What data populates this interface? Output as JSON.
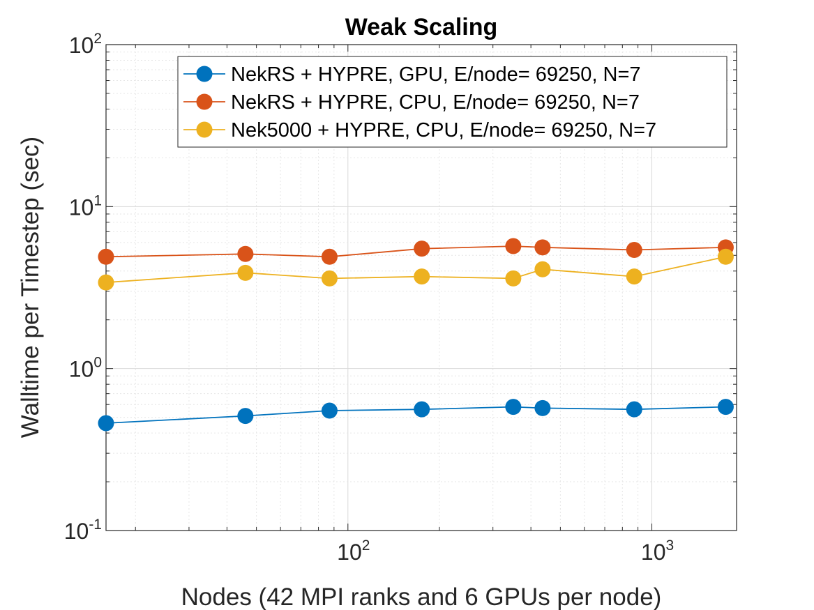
{
  "chart_data": {
    "type": "line",
    "title": "Weak Scaling",
    "xlabel": "Nodes (42 MPI ranks and 6 GPUs per node)",
    "ylabel": "Walltime per Timestep (sec)",
    "xscale": "log",
    "yscale": "log",
    "xlim": [
      16,
      1900
    ],
    "ylim": [
      0.1,
      100
    ],
    "xticks": [
      {
        "value": 100,
        "base": "10",
        "exp": "2"
      },
      {
        "value": 1000,
        "base": "10",
        "exp": "3"
      }
    ],
    "yticks": [
      {
        "value": 0.1,
        "base": "10",
        "exp": "-1"
      },
      {
        "value": 1,
        "base": "10",
        "exp": "0"
      },
      {
        "value": 10,
        "base": "10",
        "exp": "1"
      },
      {
        "value": 100,
        "base": "10",
        "exp": "2"
      }
    ],
    "grid": true,
    "legend_position": "top-right",
    "x": [
      16,
      46,
      87,
      175,
      350,
      437,
      875,
      1750
    ],
    "series": [
      {
        "name": "NekRS + HYPRE, GPU, E/node= 69250, N=7",
        "color": "#0072BD",
        "values": [
          0.46,
          0.51,
          0.55,
          0.56,
          0.58,
          0.57,
          0.56,
          0.58
        ]
      },
      {
        "name": "NekRS + HYPRE, CPU, E/node= 69250, N=7",
        "color": "#D95319",
        "values": [
          4.9,
          5.1,
          4.9,
          5.5,
          5.7,
          5.6,
          5.4,
          5.6
        ]
      },
      {
        "name": "Nek5000 + HYPRE, CPU, E/node= 69250, N=7",
        "color": "#EDB120",
        "values": [
          3.4,
          3.9,
          3.6,
          3.7,
          3.6,
          4.1,
          3.7,
          4.9
        ]
      }
    ]
  }
}
